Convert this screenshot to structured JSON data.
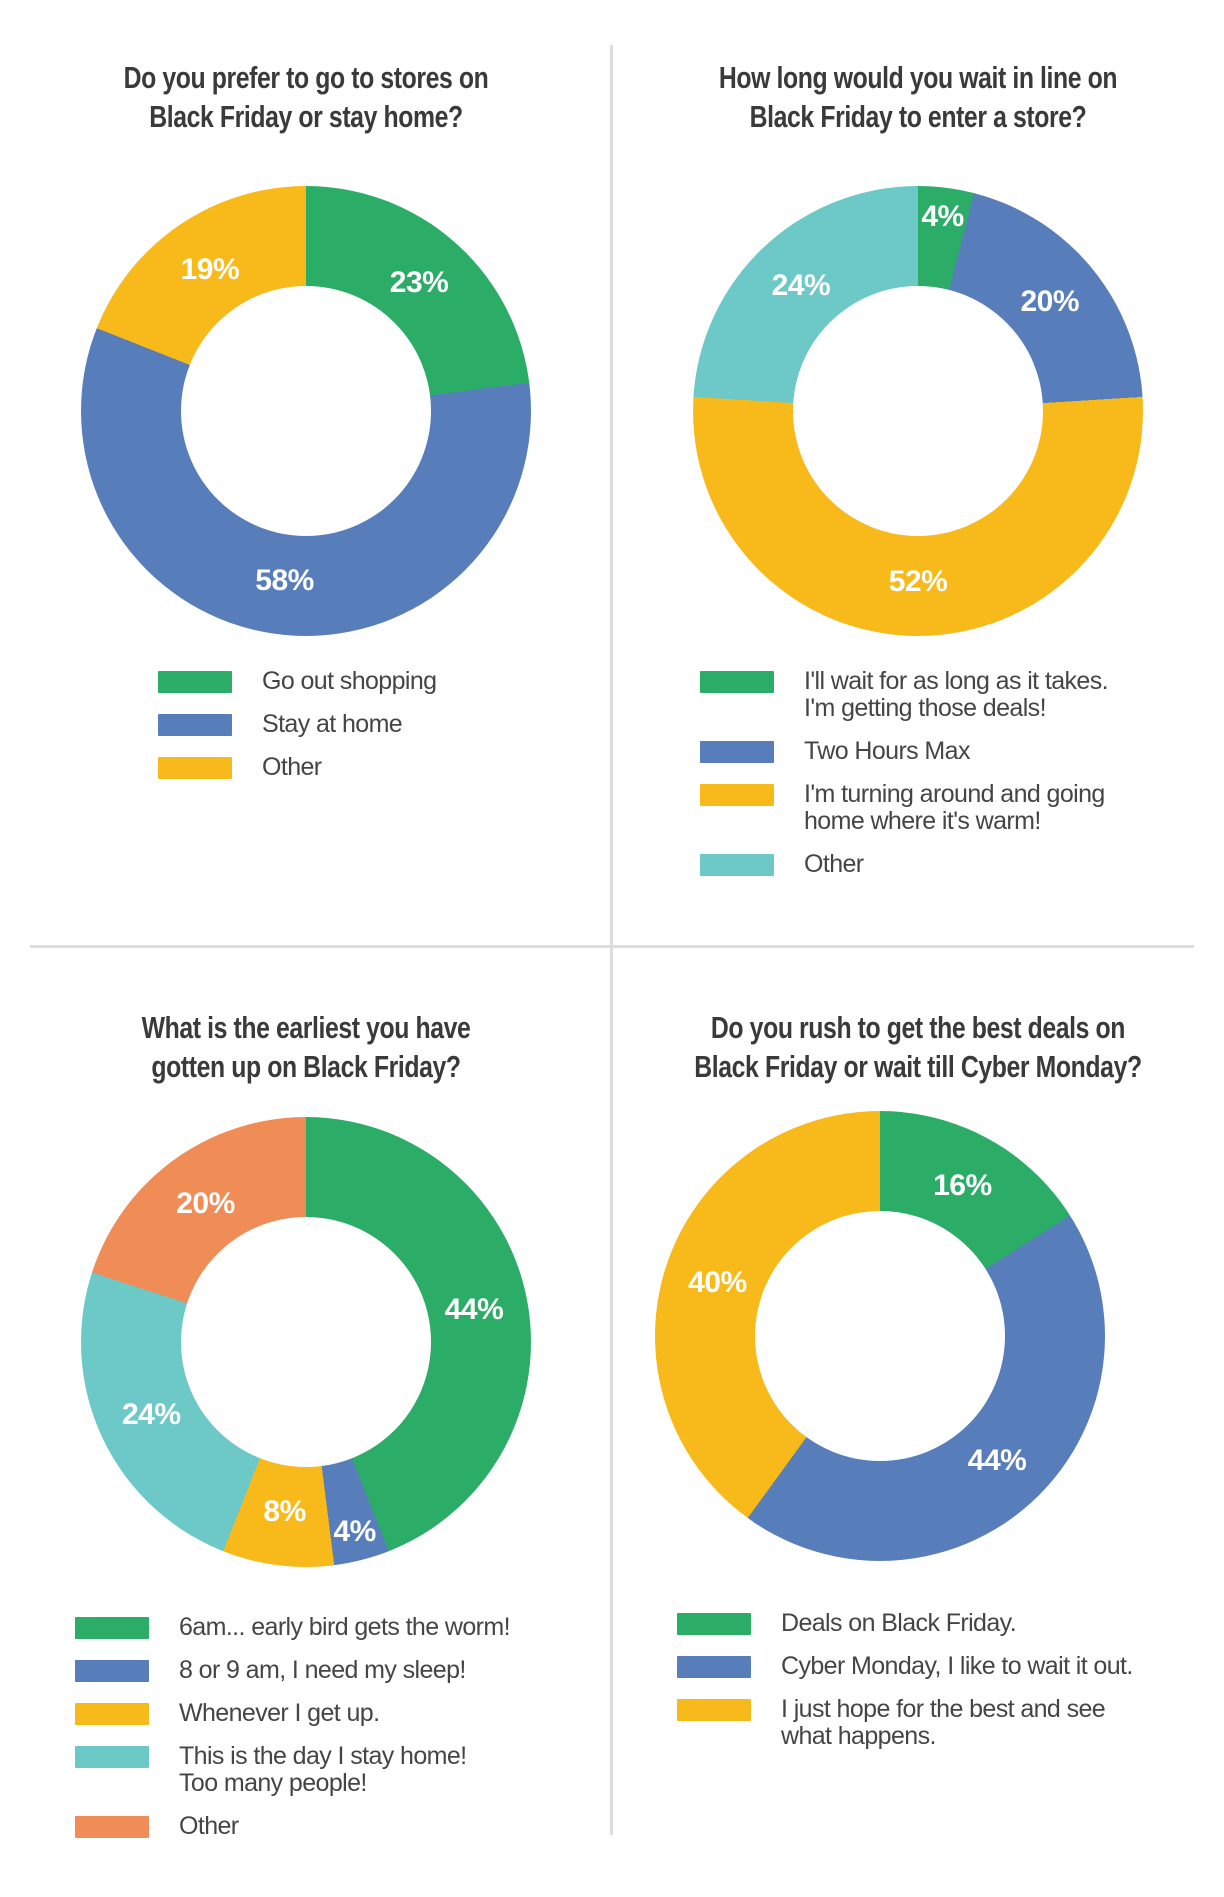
{
  "page": {
    "background": "#FFFFFF",
    "vertical_divider_color": "#DDDDDD",
    "horizontal_divider_color": "#DDDDDD"
  },
  "palette": {
    "green": "#2BAD68",
    "blue": "#577EBB",
    "yellow": "#F8BA1A",
    "teal": "#6CC9C8",
    "orange": "#F08C55",
    "title_text": "#3A3A3A",
    "legend_text": "#454545",
    "slice_label_text": "#FFFFFF"
  },
  "chart_data": [
    {
      "type": "pie",
      "subtype": "donut",
      "title": "Do you prefer to go to stores on Black Friday or stay home?",
      "title_lines": [
        "Do you prefer to go to stores on",
        "Black Friday or stay home?"
      ],
      "categories": [
        "Go out shopping",
        "Stay at home",
        "Other"
      ],
      "values": [
        23,
        58,
        19
      ],
      "value_labels": [
        "23%",
        "58%",
        "19%"
      ],
      "colors": [
        "#2BAD68",
        "#577EBB",
        "#F8BA1A"
      ],
      "legend_position": "bottom",
      "legend": [
        {
          "color": "#2BAD68",
          "lines": [
            "Go out shopping"
          ]
        },
        {
          "color": "#577EBB",
          "lines": [
            "Stay at home"
          ]
        },
        {
          "color": "#F8BA1A",
          "lines": [
            "Other"
          ]
        }
      ]
    },
    {
      "type": "pie",
      "subtype": "donut",
      "title": "How long would you wait in line on Black Friday to enter a store?",
      "title_lines": [
        "How long would you wait in line on",
        "Black Friday to enter a store?"
      ],
      "categories": [
        "I'll wait for as long as it takes. I'm getting those deals!",
        "Two Hours Max",
        "I'm turning around and going home where it's warm!",
        "Other"
      ],
      "values": [
        4,
        20,
        52,
        24
      ],
      "value_labels": [
        "4%",
        "20%",
        "52%",
        "24%"
      ],
      "colors": [
        "#2BAD68",
        "#577EBB",
        "#F8BA1A",
        "#6CC9C8"
      ],
      "legend_position": "bottom",
      "legend": [
        {
          "color": "#2BAD68",
          "lines": [
            "I'll wait for as long as it takes.",
            "I'm getting those deals!"
          ]
        },
        {
          "color": "#577EBB",
          "lines": [
            "Two Hours Max"
          ]
        },
        {
          "color": "#F8BA1A",
          "lines": [
            "I'm turning around and going",
            "home where it's warm!"
          ]
        },
        {
          "color": "#6CC9C8",
          "lines": [
            "Other"
          ]
        }
      ]
    },
    {
      "type": "pie",
      "subtype": "donut",
      "title": "What is the earliest you have gotten up on Black Friday?",
      "title_lines": [
        "What is the earliest you have",
        "gotten up on Black Friday?"
      ],
      "categories": [
        "6am... early bird gets the worm!",
        "8 or 9 am, I need my sleep!",
        "Whenever I get up.",
        "This is the day I stay home! Too many people!",
        "Other"
      ],
      "values": [
        44,
        4,
        8,
        24,
        20
      ],
      "value_labels": [
        "44%",
        "4%",
        "8%",
        "24%",
        "20%"
      ],
      "colors": [
        "#2BAD68",
        "#577EBB",
        "#F8BA1A",
        "#6CC9C8",
        "#F08C55"
      ],
      "legend_position": "bottom",
      "legend": [
        {
          "color": "#2BAD68",
          "lines": [
            "6am... early bird gets the worm!"
          ]
        },
        {
          "color": "#577EBB",
          "lines": [
            "8 or 9 am, I need my sleep!"
          ]
        },
        {
          "color": "#F8BA1A",
          "lines": [
            "Whenever I get up."
          ]
        },
        {
          "color": "#6CC9C8",
          "lines": [
            "This is the day I stay home!",
            "Too many people!"
          ]
        },
        {
          "color": "#F08C55",
          "lines": [
            "Other"
          ]
        }
      ]
    },
    {
      "type": "pie",
      "subtype": "donut",
      "title": "Do you rush to get the best deals on Black Friday or wait till Cyber Monday?",
      "title_lines": [
        "Do you rush to get the best deals on",
        "Black Friday or wait till Cyber Monday?"
      ],
      "categories": [
        "Deals on Black Friday.",
        "Cyber Monday, I like to wait it out.",
        "I just hope for the best and see what happens."
      ],
      "values": [
        16,
        44,
        40
      ],
      "value_labels": [
        "16%",
        "44%",
        "40%"
      ],
      "colors": [
        "#2BAD68",
        "#577EBB",
        "#F8BA1A"
      ],
      "legend_position": "bottom",
      "legend": [
        {
          "color": "#2BAD68",
          "lines": [
            "Deals on Black Friday."
          ]
        },
        {
          "color": "#577EBB",
          "lines": [
            "Cyber Monday, I like to wait it out."
          ]
        },
        {
          "color": "#F8BA1A",
          "lines": [
            "I just hope for the best and see",
            "what happens."
          ]
        }
      ]
    }
  ]
}
